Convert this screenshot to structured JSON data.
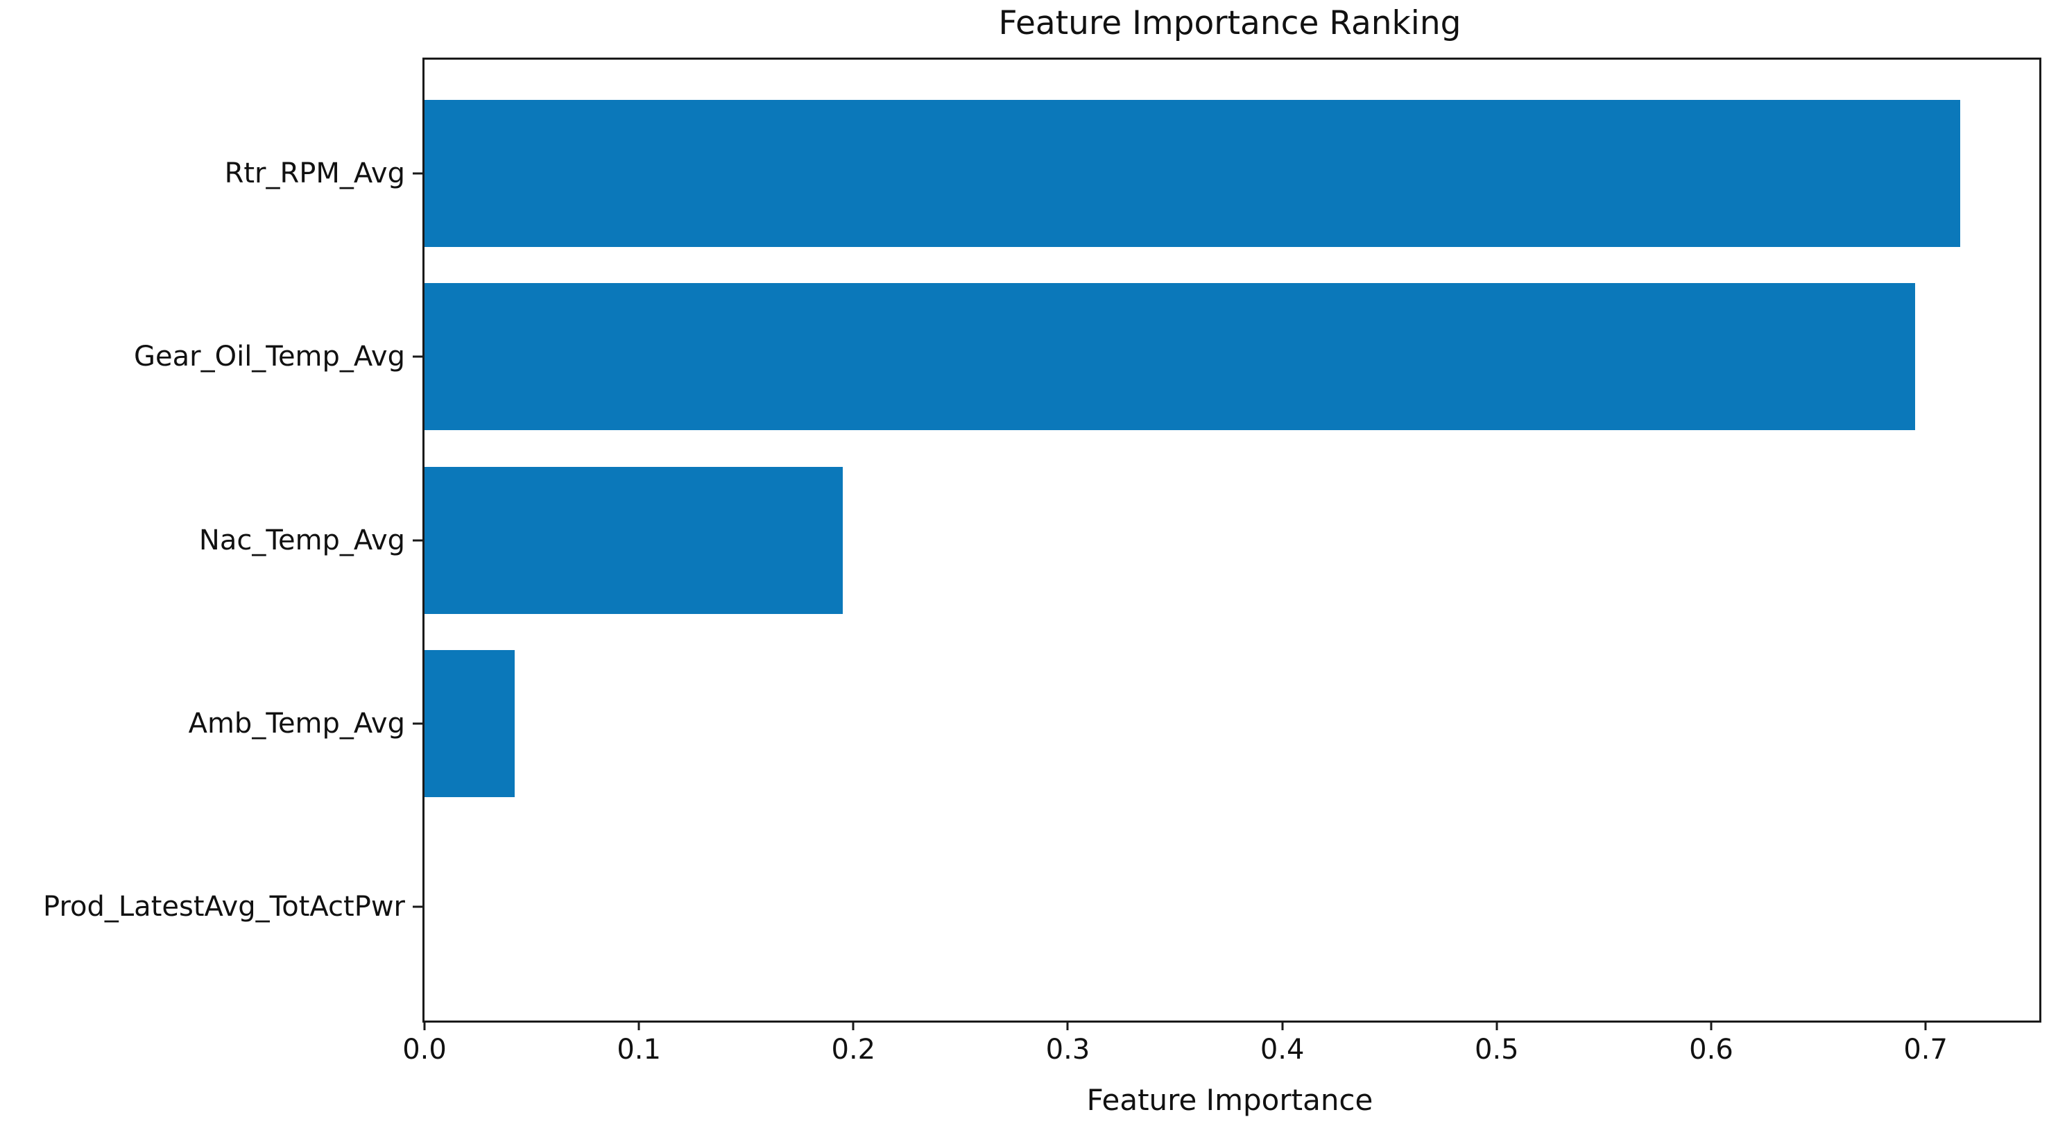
{
  "chart_data": {
    "type": "bar",
    "orientation": "horizontal",
    "title": "Feature Importance Ranking",
    "xlabel": "Feature Importance",
    "ylabel": "",
    "categories": [
      "Rtr_RPM_Avg",
      "Gear_Oil_Temp_Avg",
      "Nac_Temp_Avg",
      "Amb_Temp_Avg",
      "Prod_LatestAvg_TotActPwr"
    ],
    "values": [
      0.716,
      0.695,
      0.195,
      0.042,
      0.0
    ],
    "xlim": [
      0.0,
      0.753
    ],
    "xticks": [
      0.0,
      0.1,
      0.2,
      0.3,
      0.4,
      0.5,
      0.6,
      0.7
    ],
    "xtick_decimals": 1,
    "grid": false,
    "legend": "none",
    "bar_color": "#0b78ba",
    "axis_color": "#1a1a1a",
    "text_color": "#111111",
    "background_color": "#ffffff"
  }
}
